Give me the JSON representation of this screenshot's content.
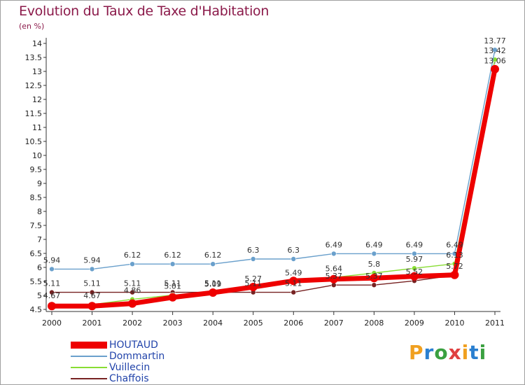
{
  "title": "Evolution du Taux de Taxe d'Habitation",
  "unit_label": "(en %)",
  "logo_text": "Proxiti",
  "chart_data": {
    "type": "line",
    "title": "Evolution du Taux de Taxe d'Habitation",
    "ylabel": "(en %)",
    "x": [
      "2000",
      "2001",
      "2002",
      "2003",
      "2004",
      "2005",
      "2006",
      "2007",
      "2008",
      "2009",
      "2010",
      "2011"
    ],
    "ylim": [
      4.5,
      14
    ],
    "yticks": [
      "4.5",
      "5",
      "5.5",
      "6",
      "6.5",
      "7",
      "7.5",
      "8",
      "8.5",
      "9",
      "9.5",
      "10",
      "10.5",
      "11",
      "11.5",
      "12",
      "12.5",
      "13",
      "13.5",
      "14"
    ],
    "grid": false,
    "legend_position": "bottom-left",
    "series": [
      {
        "name": "HOUTAUD",
        "color": "#ee0000",
        "values": [
          4.62,
          4.62,
          4.71,
          4.93,
          5.1,
          5.3,
          5.52,
          5.58,
          5.62,
          5.68,
          5.73,
          13.08
        ],
        "labels": []
      },
      {
        "name": "Dommartin",
        "color": "#6aa0cc",
        "values": [
          5.94,
          5.94,
          6.12,
          6.12,
          6.12,
          6.3,
          6.3,
          6.49,
          6.49,
          6.49,
          6.49,
          13.77
        ],
        "labels": [
          "5.94",
          "5.94",
          "6.12",
          "6.12",
          "6.12",
          "6.3",
          "6.3",
          "6.49",
          "6.49",
          "6.49",
          "6.49",
          "13.77"
        ]
      },
      {
        "name": "Vuillecin",
        "color": "#88dd33",
        "values": [
          4.67,
          4.67,
          4.86,
          5.01,
          5.09,
          5.27,
          5.49,
          5.64,
          5.8,
          5.97,
          6.13,
          13.42
        ],
        "labels": [
          "4.67",
          "4.67",
          "4.86",
          "5.01",
          "5.09",
          "5.27",
          "5.49",
          "5.64",
          "5.8",
          "5.97",
          "6.13",
          "13.42"
        ]
      },
      {
        "name": "Chaffois",
        "color": "#772222",
        "values": [
          5.11,
          5.11,
          5.11,
          5.11,
          5.11,
          5.11,
          5.11,
          5.37,
          5.37,
          5.52,
          5.72,
          13.06
        ],
        "labels": [
          "5.11",
          "5.11",
          "5.11",
          "5.11",
          "5.11",
          "5.11",
          "5.11",
          "5.37",
          "5.37",
          "5.52",
          "5.72",
          "13.06"
        ]
      }
    ]
  }
}
